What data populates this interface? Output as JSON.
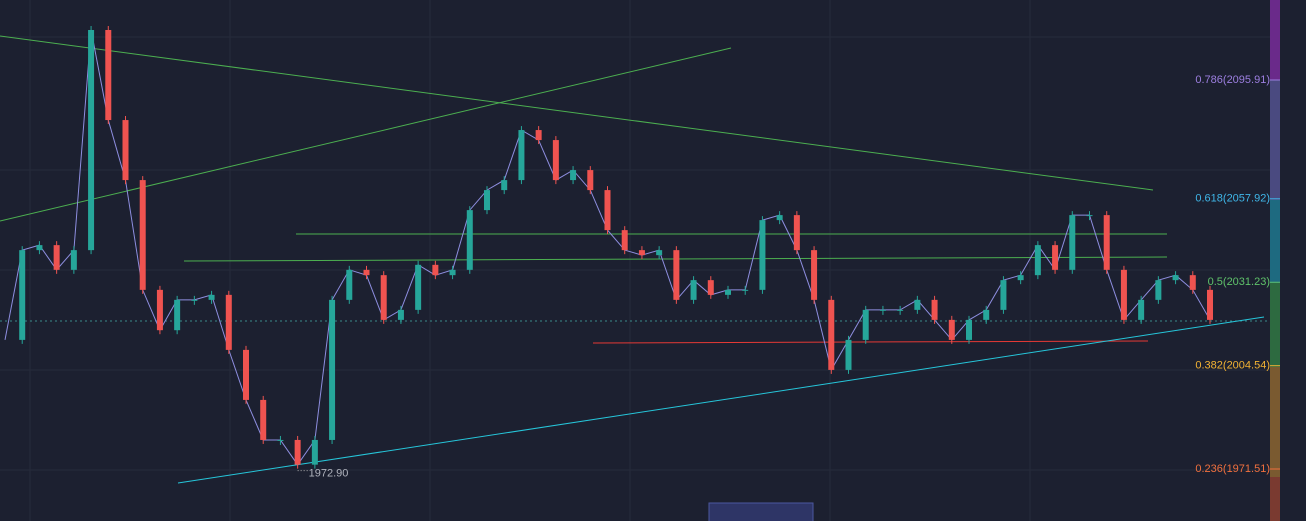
{
  "fib_levels": [
    {
      "label": "0.786(2095.91)",
      "price": 2095.91,
      "color": "#9c7fe0"
    },
    {
      "label": "0.618(2057.92)",
      "price": 2057.92,
      "color": "#3fb6e8"
    },
    {
      "label": "0.5(2031.23)",
      "price": 2031.23,
      "color": "#5fc26a"
    },
    {
      "label": "0.382(2004.54)",
      "price": 2004.54,
      "color": "#f2b233"
    },
    {
      "label": "0.236(1971.51)",
      "price": 1971.51,
      "color": "#f0703e"
    }
  ],
  "low": {
    "label": "1972.90",
    "value": 1972.9
  },
  "price_path": [
    2012.8,
    2041.5,
    2043.1,
    2035.2,
    2041.5,
    2111.9,
    2083.1,
    2063.9,
    2028.8,
    2015.9,
    2025.6,
    2025.6,
    2027.2,
    2009.6,
    1993.6,
    1980.8,
    1980.8,
    1972.9,
    1980.8,
    2025.6,
    2035.2,
    2033.5,
    2019.2,
    2022.4,
    2036.8,
    2033.5,
    2035.2,
    2054.3,
    2060.7,
    2063.9,
    2079.9,
    2076.7,
    2063.9,
    2067.1,
    2060.7,
    2047.9,
    2041.5,
    2039.9,
    2041.5,
    2025.6,
    2031.9,
    2027.2,
    2028.8,
    2028.8,
    2051.1,
    2052.7,
    2041.5,
    2025.6,
    2003.2,
    2012.8,
    2022.4,
    2022.4,
    2022.4,
    2025.6,
    2019.2,
    2012.8,
    2019.2,
    2022.4,
    2031.9,
    2033.5,
    2043.1,
    2035.2,
    2052.7,
    2052.7,
    2035.2,
    2019.2,
    2025.6,
    2031.9,
    2033.5,
    2028.8,
    2019.2
  ]
}
